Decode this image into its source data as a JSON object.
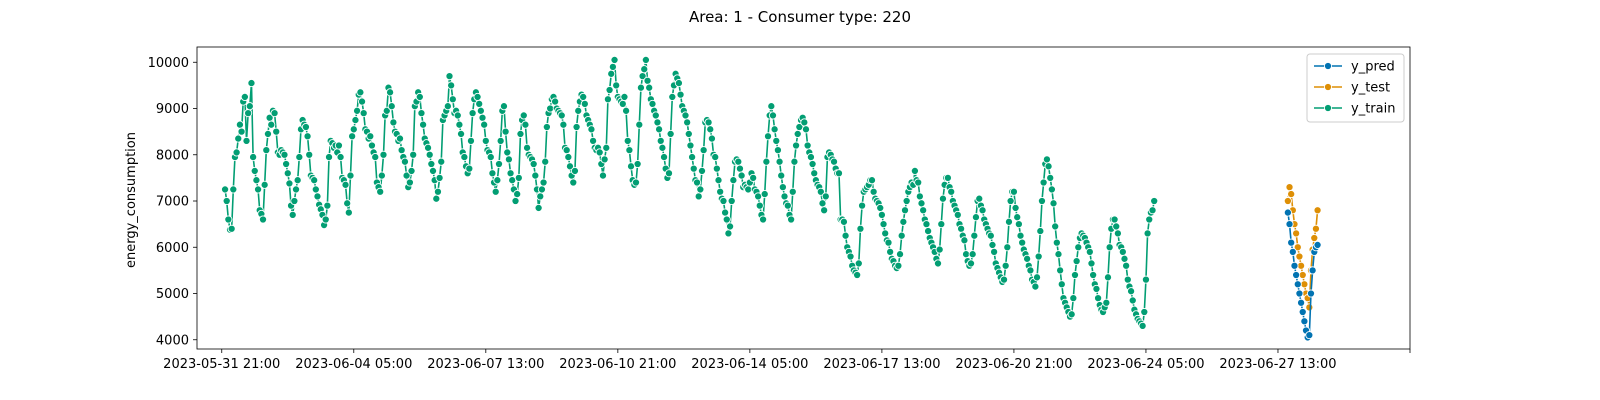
{
  "chart_data": {
    "type": "line",
    "title": "Area: 1 - Consumer type: 220",
    "xlabel": "",
    "ylabel": "energy_consumption",
    "ylim": [
      3800,
      10330
    ],
    "yticks": [
      4000,
      5000,
      6000,
      7000,
      8000,
      9000,
      10000
    ],
    "x_start": "2023-05-31 21:00",
    "xlim_hours": [
      -15,
      720
    ],
    "xticks": [
      {
        "label": "2023-05-31 21:00",
        "h": 0
      },
      {
        "label": "2023-06-04 05:00",
        "h": 80
      },
      {
        "label": "2023-06-07 13:00",
        "h": 160
      },
      {
        "label": "2023-06-10 21:00",
        "h": 240
      },
      {
        "label": "2023-06-14 05:00",
        "h": 320
      },
      {
        "label": "2023-06-17 13:00",
        "h": 400
      },
      {
        "label": "2023-06-20 21:00",
        "h": 480
      },
      {
        "label": "2023-06-24 05:00",
        "h": 560
      },
      {
        "label": "2023-06-27 13:00",
        "h": 640
      },
      {
        "label": "",
        "h": 720
      }
    ],
    "legend": {
      "position": "upper-right"
    },
    "grid": false,
    "series": [
      {
        "name": "y_train",
        "color": "#029e73",
        "x_start_h": 2,
        "x_step_h": 1,
        "values": [
          7250,
          7000,
          6600,
          6380,
          6400,
          7250,
          7950,
          8050,
          8350,
          8650,
          8500,
          9150,
          9250,
          8300,
          8900,
          9050,
          9550,
          7950,
          7650,
          7450,
          7250,
          6800,
          6720,
          6600,
          7350,
          8100,
          8450,
          8800,
          8650,
          8950,
          8900,
          8500,
          8050,
          8000,
          8100,
          8050,
          8000,
          7800,
          7600,
          7380,
          6900,
          6700,
          7000,
          7250,
          7450,
          7950,
          8550,
          8750,
          8650,
          8600,
          8400,
          8000,
          7550,
          7500,
          7450,
          7250,
          7100,
          6920,
          6820,
          6700,
          6480,
          6600,
          6900,
          7950,
          8300,
          8250,
          8150,
          8200,
          8050,
          8200,
          7950,
          7500,
          7450,
          7350,
          6950,
          6750,
          7550,
          8400,
          8550,
          8750,
          8950,
          9300,
          9350,
          9150,
          8900,
          8550,
          8500,
          8350,
          8400,
          8200,
          8050,
          7950,
          7400,
          7300,
          7200,
          7550,
          8000,
          8850,
          8950,
          9450,
          9350,
          9050,
          8700,
          8500,
          8450,
          8300,
          8350,
          8100,
          7950,
          7850,
          7550,
          7300,
          7400,
          7650,
          8000,
          9050,
          9150,
          9350,
          9250,
          8900,
          8650,
          8350,
          8250,
          8150,
          8000,
          7800,
          7650,
          7450,
          7050,
          7200,
          7500,
          7850,
          8750,
          8850,
          8950,
          9050,
          9700,
          9500,
          9200,
          8900,
          8950,
          8850,
          8650,
          8450,
          8050,
          7950,
          7750,
          7600,
          7700,
          8300,
          8900,
          9200,
          9350,
          9250,
          9100,
          8950,
          8800,
          8650,
          8300,
          8100,
          8050,
          7950,
          7600,
          7400,
          7200,
          7450,
          7800,
          8300,
          8950,
          9050,
          8500,
          8050,
          7900,
          7600,
          7450,
          7250,
          7000,
          7150,
          7500,
          8450,
          8750,
          8850,
          8650,
          8150,
          8000,
          7950,
          7900,
          7800,
          7550,
          7250,
          6850,
          7100,
          7250,
          7400,
          7850,
          8600,
          8900,
          9000,
          9200,
          9250,
          9150,
          9000,
          8950,
          8900,
          8850,
          8650,
          8150,
          8100,
          7950,
          7750,
          7550,
          7400,
          7650,
          8600,
          8950,
          9150,
          9300,
          9250,
          9100,
          8850,
          8750,
          8650,
          8550,
          8300,
          8150,
          8100,
          8150,
          8050,
          7800,
          7550,
          7900,
          8150,
          9200,
          9400,
          9750,
          9900,
          10050,
          9500,
          9250,
          9200,
          9150,
          9100,
          9250,
          8950,
          8300,
          8100,
          7750,
          7450,
          7350,
          7400,
          7800,
          8650,
          9450,
          9700,
          9850,
          10050,
          9600,
          9450,
          9200,
          9100,
          8950,
          8850,
          8700,
          8550,
          8300,
          8150,
          7950,
          7700,
          7500,
          7600,
          8450,
          9250,
          9500,
          9750,
          9650,
          9550,
          9300,
          9050,
          8950,
          8850,
          8700,
          8450,
          8200,
          7950,
          7700,
          7450,
          7400,
          7100,
          7250,
          7650,
          8100,
          8700,
          8750,
          8700,
          8550,
          8350,
          8000,
          7950,
          7700,
          7450,
          7200,
          7050,
          7000,
          6750,
          6600,
          6300,
          6450,
          7000,
          7450,
          7850,
          7900,
          7850,
          7700,
          7550,
          7300,
          7350,
          7300,
          7250,
          7400,
          7600,
          7500,
          7250,
          7200,
          7100,
          6900,
          6700,
          6600,
          7150,
          7850,
          8400,
          8850,
          9050,
          8850,
          8550,
          8300,
          8100,
          7850,
          7550,
          7300,
          7100,
          6950,
          6900,
          6700,
          6600,
          7200,
          7850,
          8200,
          8450,
          8600,
          8750,
          8800,
          8700,
          8550,
          8200,
          8050,
          7950,
          7800,
          7600,
          7450,
          7350,
          7300,
          7200,
          6950,
          6800,
          7100,
          7950,
          8050,
          8000,
          7900,
          7850,
          7700,
          7600,
          7600,
          6600,
          6600,
          6550,
          6250,
          6000,
          5900,
          5800,
          5600,
          5500,
          5450,
          5400,
          5650,
          6400,
          6900,
          7200,
          7250,
          7300,
          7350,
          7450,
          7450,
          7200,
          7050,
          7000,
          6950,
          6850,
          6700,
          6500,
          6300,
          6150,
          6100,
          5900,
          5750,
          5700,
          5600,
          5550,
          5600,
          5850,
          6250,
          6550,
          6800,
          7000,
          7200,
          7300,
          7400,
          7350,
          7650,
          7450,
          7400,
          7100,
          6950,
          6800,
          6600,
          6500,
          6350,
          6200,
          6100,
          6000,
          5900,
          5750,
          5650,
          5950,
          6500,
          7050,
          7350,
          7500,
          7500,
          7300,
          7200,
          7000,
          6900,
          6800,
          6700,
          6500,
          6400,
          6250,
          6150,
          5850,
          5700,
          5600,
          5650,
          5850,
          6250,
          6650,
          7000,
          7050,
          6900,
          6800,
          6600,
          6500,
          6400,
          6300,
          6250,
          6050,
          5900,
          5650,
          5550,
          5450,
          5350,
          5250,
          5300,
          5600,
          6000,
          6550,
          7000,
          7200,
          7200,
          6850,
          6650,
          6500,
          6250,
          6100,
          5950,
          5850,
          5750,
          5600,
          5500,
          5300,
          5250,
          5150,
          5350,
          5800,
          6350,
          7000,
          7400,
          7800,
          7900,
          7750,
          7500,
          7250,
          6950,
          6450,
          6100,
          5850,
          5500,
          5200,
          4900,
          4800,
          4700,
          4600,
          4500,
          4550,
          4900,
          5400,
          5700,
          6000,
          6200,
          6300,
          6250,
          6200,
          6100,
          6000,
          5900,
          5650,
          5400,
          5200,
          5100,
          4900,
          4750,
          4650,
          4600,
          4700,
          4800,
          5350,
          6000,
          6400,
          6600,
          6600,
          6450,
          6300,
          6050,
          6000,
          5900,
          5750,
          5600,
          5300,
          5150,
          5050,
          4850,
          4650,
          4550,
          4450,
          4400,
          4350,
          4300,
          4600,
          5300,
          6300,
          6600,
          6750,
          6800,
          7000
        ]
      },
      {
        "name": "y_test",
        "color": "#de8f05",
        "x_start_h": 646,
        "x_step_h": 1,
        "values": [
          7000,
          7300,
          7150,
          6800,
          6500,
          6300,
          6000,
          5800,
          5600,
          5400,
          5200,
          5000,
          4900,
          4700,
          5500,
          5950,
          6200,
          6400,
          6800
        ]
      },
      {
        "name": "y_pred",
        "color": "#0173b2",
        "x_start_h": 646,
        "x_step_h": 1,
        "values": [
          6750,
          6500,
          6100,
          5900,
          5600,
          5400,
          5200,
          5000,
          4800,
          4600,
          4400,
          4200,
          4050,
          4100,
          5000,
          5500,
          5900,
          6000,
          6050
        ]
      }
    ]
  }
}
